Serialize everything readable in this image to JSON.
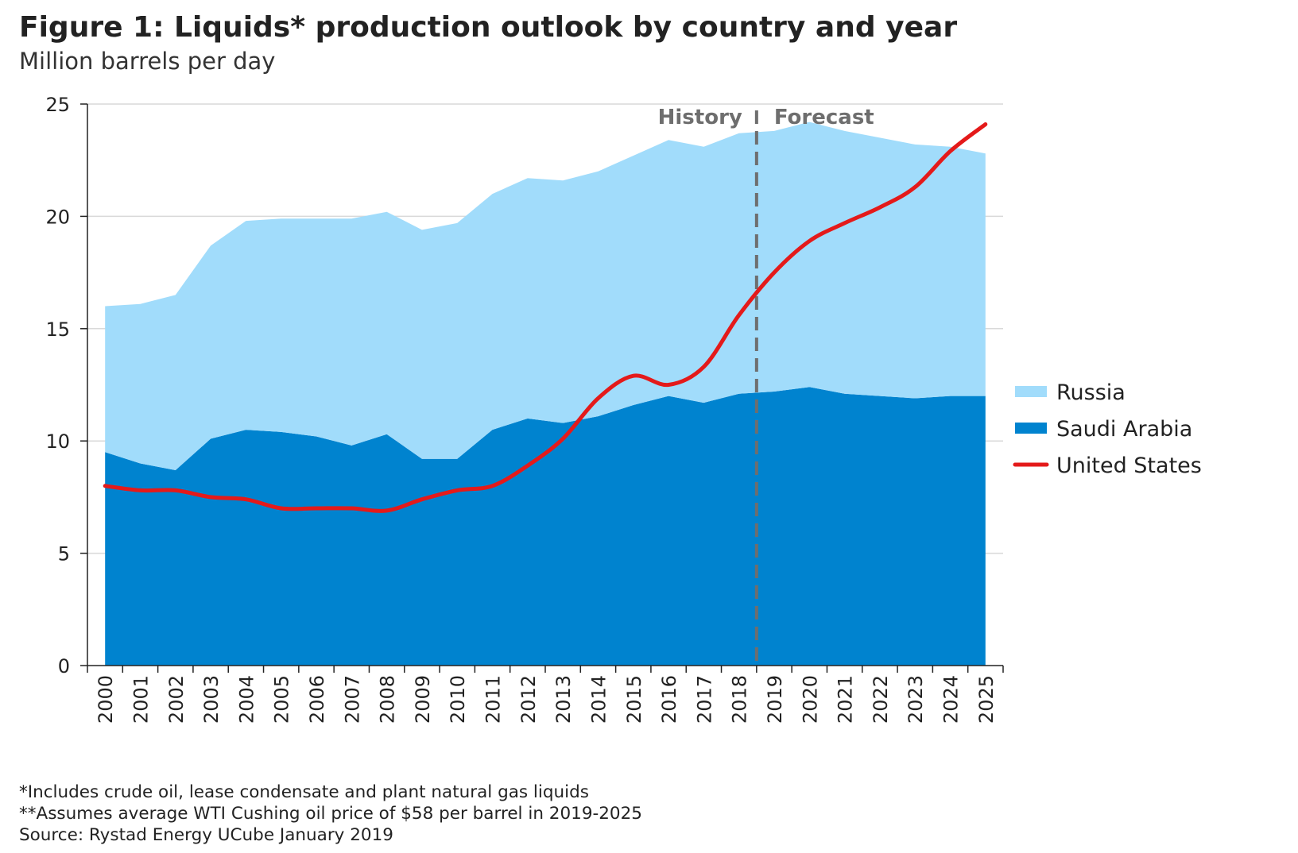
{
  "title": "Figure 1: Liquids* production outlook by country and year",
  "subtitle": "Million barrels per day",
  "footnotes": [
    "*Includes crude oil, lease condensate and plant natural gas liquids",
    "**Assumes average WTI Cushing oil price of $58 per barrel in 2019-2025",
    "Source: Rystad Energy UCube January 2019"
  ],
  "chart_data": {
    "type": "area",
    "stacked": true,
    "x": [
      "2000",
      "2001",
      "2002",
      "2003",
      "2004",
      "2005",
      "2006",
      "2007",
      "2008",
      "2009",
      "2010",
      "2011",
      "2012",
      "2013",
      "2014",
      "2015",
      "2016",
      "2017",
      "2018",
      "2019",
      "2020",
      "2021",
      "2022",
      "2023",
      "2024",
      "2025"
    ],
    "ylim": [
      0,
      25
    ],
    "yticks": [
      0,
      5,
      10,
      15,
      20,
      25
    ],
    "grid": true,
    "legend_position": "right",
    "series": [
      {
        "name": "Saudi Arabia",
        "kind": "area",
        "color": "#0083cf",
        "values": [
          9.5,
          9.0,
          8.7,
          10.1,
          10.5,
          10.4,
          10.2,
          9.8,
          10.3,
          9.2,
          9.2,
          10.5,
          11.0,
          10.8,
          11.1,
          11.6,
          12.0,
          11.7,
          12.1,
          12.2,
          12.4,
          12.1,
          12.0,
          11.9,
          12.0,
          12.0
        ]
      },
      {
        "name": "Russia",
        "kind": "area",
        "color": "#a1dcfb",
        "values": [
          6.5,
          7.1,
          7.8,
          8.6,
          9.3,
          9.5,
          9.7,
          10.1,
          9.9,
          10.2,
          10.5,
          10.5,
          10.7,
          10.8,
          10.9,
          11.1,
          11.4,
          11.4,
          11.6,
          11.6,
          11.8,
          11.7,
          11.5,
          11.3,
          11.1,
          10.8
        ]
      },
      {
        "name": "United States",
        "kind": "line",
        "color": "#e41a1a",
        "values": [
          8.0,
          7.8,
          7.8,
          7.5,
          7.4,
          7.0,
          7.0,
          7.0,
          6.9,
          7.4,
          7.8,
          8.0,
          8.9,
          10.1,
          11.9,
          12.9,
          12.5,
          13.3,
          15.6,
          17.5,
          18.9,
          19.7,
          20.4,
          21.3,
          22.9,
          24.1
        ]
      }
    ],
    "annotations": {
      "history_label": "History",
      "forecast_label": "Forecast",
      "divider_between": [
        "2018",
        "2019"
      ]
    }
  }
}
